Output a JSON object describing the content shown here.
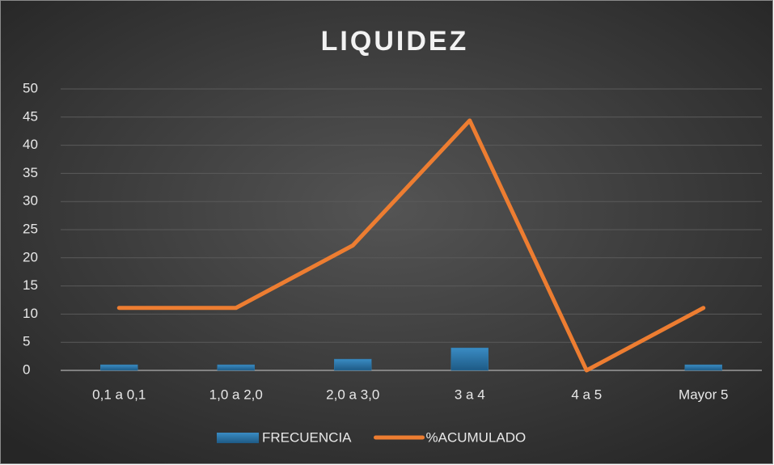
{
  "chart_data": {
    "type": "bar",
    "title": "LIQUIDEZ",
    "categories": [
      "0,1 a 0,1",
      "1,0 a 2,0",
      "2,0 a 3,0",
      "3 a 4",
      "4 a 5",
      "Mayor 5"
    ],
    "series": [
      {
        "name": "FRECUENCIA",
        "type": "bar",
        "color": "#2f78a8",
        "values": [
          1,
          1,
          2,
          4,
          0,
          1
        ]
      },
      {
        "name": "%ACUMULADO",
        "type": "line",
        "color": "#ed7d31",
        "values": [
          11.1,
          11.1,
          22.2,
          44.4,
          0,
          11.1
        ]
      }
    ],
    "ylim": [
      0,
      50
    ],
    "yticks": [
      0,
      5,
      10,
      15,
      20,
      25,
      30,
      35,
      40,
      45,
      50
    ],
    "grid": true,
    "legend": "bottom"
  }
}
